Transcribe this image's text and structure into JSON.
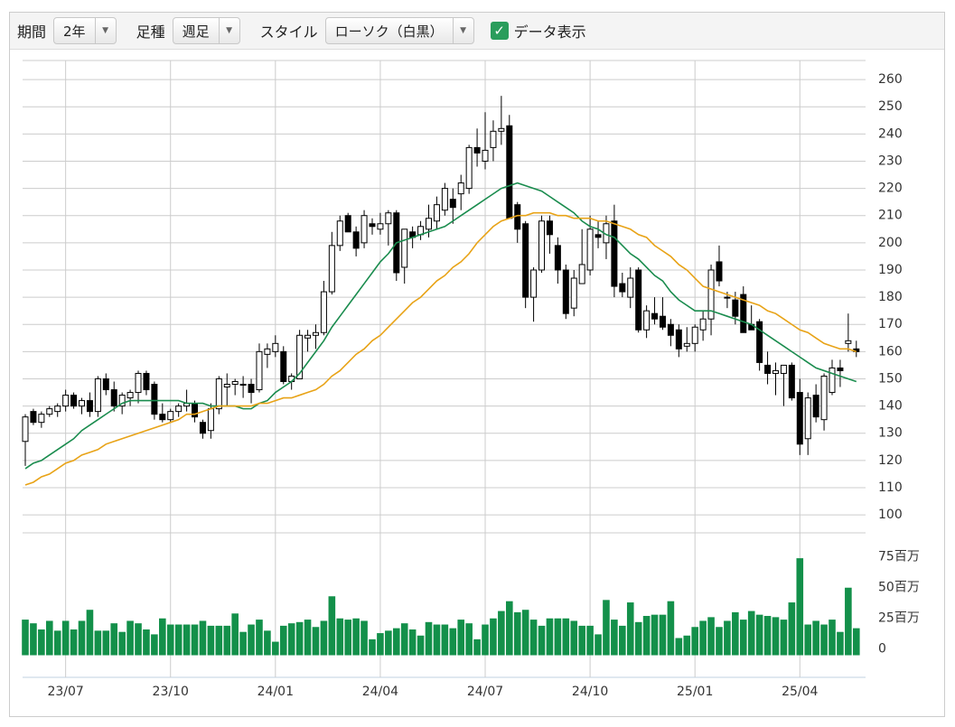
{
  "controls": {
    "period_label": "期間",
    "period_value": "2年",
    "bar_label": "足種",
    "bar_value": "週足",
    "style_label": "スタイル",
    "style_value": "ローソク（白黒）",
    "data_display": "データ表示"
  },
  "chart_data": [
    {
      "type": "candlestick",
      "categories": [
        null,
        null,
        null,
        null,
        null,
        "23/07",
        null,
        null,
        null,
        null,
        null,
        null,
        null,
        null,
        null,
        null,
        null,
        null,
        "23/10",
        null,
        null,
        null,
        null,
        null,
        null,
        null,
        null,
        null,
        null,
        null,
        null,
        "24/01",
        null,
        null,
        null,
        null,
        null,
        null,
        null,
        null,
        null,
        null,
        null,
        null,
        "24/04",
        null,
        null,
        null,
        null,
        null,
        null,
        null,
        null,
        null,
        null,
        null,
        null,
        "24/07",
        null,
        null,
        null,
        null,
        null,
        null,
        null,
        null,
        null,
        null,
        null,
        null,
        "24/10",
        null,
        null,
        null,
        null,
        null,
        null,
        null,
        null,
        null,
        null,
        null,
        null,
        "25/01",
        null,
        null,
        null,
        null,
        null,
        null,
        null,
        null,
        null,
        null,
        null,
        null,
        "25/04",
        null,
        null,
        null,
        null,
        null,
        null,
        null
      ],
      "open": [
        127,
        138,
        134,
        137,
        138,
        140,
        144,
        140,
        142,
        138,
        150,
        146,
        140,
        143,
        145,
        152,
        148,
        137,
        135,
        138,
        140,
        141,
        134,
        131,
        139,
        147,
        148,
        148,
        148,
        146,
        159,
        160,
        160,
        149,
        150,
        165,
        166,
        167,
        182,
        199,
        210,
        204,
        200,
        207,
        205,
        207,
        211,
        191,
        204,
        203,
        205,
        208,
        212,
        216,
        218,
        220,
        235,
        230,
        235,
        241,
        243,
        214,
        207,
        180,
        190,
        208,
        199,
        190,
        176,
        185,
        190,
        203,
        200,
        208,
        185,
        180,
        190,
        168,
        174,
        173,
        170,
        168,
        162,
        163,
        168,
        172,
        193,
        180,
        179,
        181,
        170,
        171,
        155,
        152,
        152,
        155,
        145,
        128,
        144,
        135,
        145,
        154,
        163,
        161
      ],
      "high": [
        137,
        139,
        138,
        140,
        141,
        146,
        145,
        143,
        145,
        151,
        152,
        149,
        145,
        146,
        153,
        153,
        149,
        141,
        139,
        141,
        146,
        142,
        135,
        141,
        151,
        152,
        150,
        151,
        150,
        163,
        163,
        166,
        162,
        152,
        168,
        168,
        170,
        186,
        204,
        210,
        211,
        206,
        212,
        209,
        211,
        212,
        212,
        205,
        206,
        208,
        214,
        217,
        222,
        220,
        225,
        236,
        242,
        248,
        245,
        254,
        247,
        215,
        208,
        191,
        210,
        210,
        202,
        192,
        190,
        205,
        210,
        208,
        210,
        214,
        189,
        191,
        191,
        177,
        180,
        180,
        172,
        170,
        169,
        170,
        175,
        192,
        199,
        182,
        182,
        184,
        177,
        172,
        160,
        156,
        155,
        156,
        150,
        145,
        148,
        152,
        157,
        157,
        174,
        164
      ],
      "low": [
        118,
        133,
        132,
        136,
        136,
        138,
        139,
        137,
        136,
        136,
        144,
        138,
        137,
        140,
        141,
        144,
        135,
        134,
        134,
        136,
        138,
        134,
        128,
        128,
        137,
        140,
        144,
        143,
        141,
        145,
        154,
        158,
        148,
        146,
        150,
        160,
        161,
        166,
        181,
        197,
        204,
        195,
        198,
        203,
        203,
        199,
        186,
        185,
        198,
        201,
        202,
        205,
        210,
        207,
        212,
        218,
        228,
        227,
        230,
        236,
        209,
        200,
        176,
        171,
        189,
        196,
        185,
        172,
        173,
        185,
        188,
        198,
        194,
        180,
        180,
        176,
        167,
        165,
        170,
        168,
        162,
        158,
        160,
        160,
        164,
        166,
        184,
        176,
        170,
        167,
        168,
        153,
        148,
        144,
        140,
        142,
        122,
        122,
        134,
        131,
        144,
        147,
        160,
        158
      ],
      "close": [
        136,
        134,
        137,
        139,
        140,
        144,
        140,
        142,
        138,
        150,
        146,
        140,
        144,
        145,
        152,
        146,
        137,
        135,
        138,
        140,
        141,
        136,
        130,
        139,
        150,
        148,
        149,
        148,
        145,
        160,
        161,
        163,
        149,
        151,
        166,
        166,
        167,
        182,
        199,
        208,
        204,
        198,
        210,
        206,
        207,
        211,
        189,
        205,
        202,
        206,
        209,
        214,
        220,
        213,
        222,
        235,
        233,
        234,
        241,
        242,
        209,
        205,
        180,
        190,
        208,
        203,
        190,
        174,
        187,
        192,
        205,
        202,
        207,
        184,
        182,
        187,
        168,
        175,
        172,
        169,
        166,
        161,
        163,
        169,
        172,
        190,
        186,
        180,
        173,
        167,
        168,
        156,
        152,
        153,
        155,
        143,
        126,
        143,
        136,
        151,
        154,
        153,
        164,
        160
      ],
      "series": [
        {
          "color": "#1a8c4e",
          "values": [
            117,
            119,
            120,
            122,
            124,
            126,
            128,
            131,
            133,
            135,
            137,
            139,
            141,
            142,
            142,
            142,
            142,
            142,
            142,
            142,
            141,
            141,
            141,
            140,
            140,
            140,
            140,
            139,
            139,
            141,
            142,
            145,
            147,
            149,
            152,
            156,
            160,
            164,
            169,
            173,
            177,
            181,
            185,
            189,
            193,
            196,
            200,
            201,
            202,
            203,
            204,
            205,
            206,
            208,
            210,
            212,
            214,
            216,
            218,
            220,
            221,
            222,
            221,
            220,
            219,
            217,
            215,
            213,
            211,
            208,
            206,
            205,
            203,
            202,
            199,
            196,
            194,
            191,
            188,
            186,
            182,
            179,
            177,
            175,
            175,
            175,
            174,
            173,
            172,
            171,
            170,
            168,
            166,
            164,
            162,
            160,
            158,
            156,
            154,
            153,
            152,
            151,
            150,
            149
          ]
        },
        {
          "color": "#e8a317",
          "values": [
            111,
            112,
            114,
            115,
            117,
            119,
            120,
            122,
            123,
            124,
            126,
            127,
            128,
            129,
            130,
            131,
            132,
            133,
            134,
            135,
            137,
            137,
            138,
            139,
            140,
            140,
            140,
            140,
            140,
            141,
            141,
            142,
            143,
            143,
            144,
            145,
            146,
            148,
            151,
            153,
            156,
            159,
            161,
            164,
            166,
            169,
            172,
            175,
            178,
            180,
            183,
            186,
            188,
            191,
            193,
            196,
            200,
            203,
            206,
            208,
            209,
            210,
            210,
            211,
            211,
            211,
            210,
            210,
            209,
            209,
            209,
            208,
            208,
            207,
            206,
            205,
            203,
            202,
            199,
            197,
            195,
            192,
            190,
            187,
            184,
            183,
            182,
            181,
            180,
            179,
            178,
            177,
            175,
            174,
            172,
            170,
            168,
            167,
            165,
            163,
            162,
            161,
            161,
            160
          ]
        }
      ],
      "ylim": [
        93.4,
        267
      ],
      "yticks": [
        100,
        110,
        120,
        130,
        140,
        150,
        160,
        170,
        180,
        190,
        200,
        210,
        220,
        230,
        240,
        250,
        260
      ],
      "grid": true
    },
    {
      "type": "bar",
      "color": "#13904a",
      "values": [
        29,
        26,
        21,
        28,
        20,
        28,
        21,
        28,
        37,
        20,
        20,
        26,
        19,
        28,
        26,
        21,
        17,
        30,
        25,
        25,
        25,
        25,
        28,
        24,
        24,
        24,
        34,
        19,
        25,
        29,
        20,
        11,
        24,
        26,
        27,
        29,
        23,
        28,
        48,
        30,
        29,
        30,
        28,
        13,
        18,
        20,
        22,
        26,
        21,
        16,
        27,
        25,
        25,
        22,
        29,
        26,
        13,
        25,
        30,
        36,
        44,
        35,
        37,
        29,
        24,
        30,
        30,
        30,
        28,
        24,
        24,
        17,
        45,
        29,
        24,
        43,
        27,
        32,
        33,
        33,
        44,
        14,
        16,
        23,
        28,
        31,
        23,
        28,
        35,
        29,
        36,
        33,
        32,
        31,
        29,
        43,
        79,
        25,
        28,
        25,
        29,
        19,
        55,
        22
      ],
      "ylim": [
        -18,
        96
      ],
      "yticks": [
        0,
        {
          "value": 25,
          "label": "25百万"
        },
        {
          "value": 50,
          "label": "50百万"
        },
        {
          "value": 75,
          "label": "75百万"
        }
      ]
    }
  ]
}
